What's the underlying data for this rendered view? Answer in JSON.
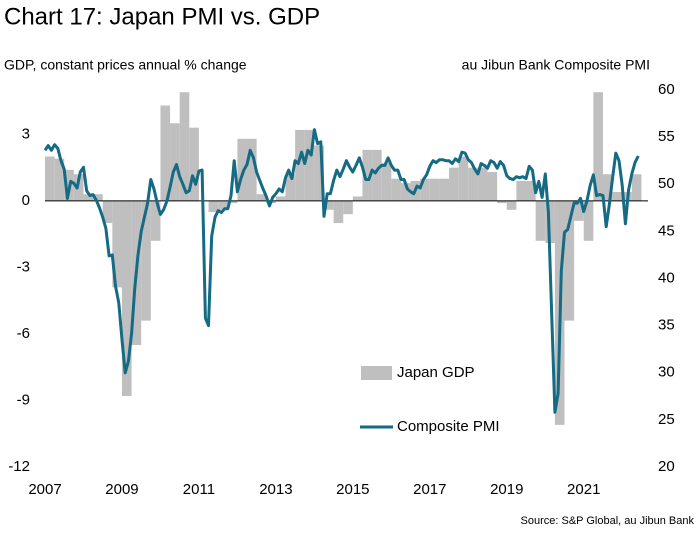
{
  "chart_data": {
    "type": "combo",
    "title": "Chart 17: Japan PMI vs. GDP",
    "y_label": "GDP, constant prices annual % change",
    "y2_label": "au Jibun Bank Composite PMI",
    "source": "Source: S&P Global, au Jibun Bank",
    "xlim": [
      2007,
      2022.67
    ],
    "xticks": [
      2007,
      2009,
      2011,
      2013,
      2015,
      2017,
      2019,
      2021
    ],
    "ylim": [
      -12,
      5
    ],
    "yticks": [
      -12,
      -9,
      -6,
      -3,
      0,
      3
    ],
    "y2lim": [
      20,
      60
    ],
    "y2ticks": [
      20,
      25,
      30,
      35,
      40,
      45,
      50,
      55,
      60
    ],
    "series": [
      {
        "name": "Japan GDP",
        "type": "bar",
        "color": "#bfbfbf",
        "x": [
          2007,
          2007.25,
          2007.5,
          2007.75,
          2008,
          2008.25,
          2008.5,
          2008.75,
          2009,
          2009.25,
          2009.5,
          2009.75,
          2010,
          2010.25,
          2010.5,
          2010.75,
          2011,
          2011.25,
          2011.5,
          2011.75,
          2012,
          2012.25,
          2012.5,
          2012.75,
          2013,
          2013.25,
          2013.5,
          2013.75,
          2014,
          2014.25,
          2014.5,
          2014.75,
          2015,
          2015.25,
          2015.5,
          2015.75,
          2016,
          2016.25,
          2016.5,
          2016.75,
          2017,
          2017.25,
          2017.5,
          2017.75,
          2018,
          2018.25,
          2018.5,
          2018.75,
          2019,
          2019.25,
          2019.5,
          2019.75,
          2020,
          2020.25,
          2020.5,
          2020.75,
          2021,
          2021.25,
          2021.5,
          2021.75,
          2022,
          2022.25
        ],
        "values": [
          2.0,
          1.9,
          1.4,
          1.2,
          0.3,
          0.3,
          -1.0,
          -3.9,
          -8.8,
          -6.5,
          -5.4,
          -1.8,
          4.3,
          3.5,
          4.9,
          3.3,
          0.0,
          -0.5,
          -0.4,
          -0.1,
          2.8,
          2.8,
          0.3,
          -0.1,
          0.2,
          1.2,
          3.2,
          3.2,
          2.5,
          -0.4,
          -1.0,
          -0.6,
          0.2,
          2.3,
          2.3,
          1.7,
          1.0,
          0.8,
          0.9,
          1.0,
          1.0,
          1.0,
          1.5,
          2.0,
          1.5,
          1.5,
          1.3,
          -0.1,
          -0.4,
          0.9,
          0.9,
          -1.8,
          -1.9,
          -10.1,
          -5.4,
          -0.9,
          -1.8,
          4.9,
          1.2,
          0.4,
          0.4,
          1.2
        ]
      },
      {
        "name": "Composite PMI",
        "type": "line",
        "axis": "y2",
        "color": "#156a84",
        "x": [
          2007,
          2007.083,
          2007.167,
          2007.25,
          2007.333,
          2007.417,
          2007.5,
          2007.583,
          2007.667,
          2007.75,
          2007.833,
          2007.917,
          2008,
          2008.083,
          2008.167,
          2008.25,
          2008.333,
          2008.417,
          2008.5,
          2008.583,
          2008.667,
          2008.75,
          2008.833,
          2008.917,
          2009,
          2009.083,
          2009.167,
          2009.25,
          2009.333,
          2009.417,
          2009.5,
          2009.583,
          2009.667,
          2009.75,
          2009.833,
          2009.917,
          2010,
          2010.083,
          2010.167,
          2010.25,
          2010.333,
          2010.417,
          2010.5,
          2010.583,
          2010.667,
          2010.75,
          2010.833,
          2010.917,
          2011,
          2011.083,
          2011.167,
          2011.25,
          2011.333,
          2011.417,
          2011.5,
          2011.583,
          2011.667,
          2011.75,
          2011.833,
          2011.917,
          2012,
          2012.083,
          2012.167,
          2012.25,
          2012.333,
          2012.417,
          2012.5,
          2012.583,
          2012.667,
          2012.75,
          2012.833,
          2012.917,
          2013,
          2013.083,
          2013.167,
          2013.25,
          2013.333,
          2013.417,
          2013.5,
          2013.583,
          2013.667,
          2013.75,
          2013.833,
          2013.917,
          2014,
          2014.083,
          2014.167,
          2014.25,
          2014.333,
          2014.417,
          2014.5,
          2014.583,
          2014.667,
          2014.75,
          2014.833,
          2014.917,
          2015,
          2015.083,
          2015.167,
          2015.25,
          2015.333,
          2015.417,
          2015.5,
          2015.583,
          2015.667,
          2015.75,
          2015.833,
          2015.917,
          2016,
          2016.083,
          2016.167,
          2016.25,
          2016.333,
          2016.417,
          2016.5,
          2016.583,
          2016.667,
          2016.75,
          2016.833,
          2016.917,
          2017,
          2017.083,
          2017.167,
          2017.25,
          2017.333,
          2017.417,
          2017.5,
          2017.583,
          2017.667,
          2017.75,
          2017.833,
          2017.917,
          2018,
          2018.083,
          2018.167,
          2018.25,
          2018.333,
          2018.417,
          2018.5,
          2018.583,
          2018.667,
          2018.75,
          2018.833,
          2018.917,
          2019,
          2019.083,
          2019.167,
          2019.25,
          2019.333,
          2019.417,
          2019.5,
          2019.583,
          2019.667,
          2019.75,
          2019.833,
          2019.917,
          2020,
          2020.083,
          2020.167,
          2020.25,
          2020.333,
          2020.417,
          2020.5,
          2020.583,
          2020.667,
          2020.75,
          2020.833,
          2020.917,
          2021,
          2021.083,
          2021.167,
          2021.25,
          2021.333,
          2021.417,
          2021.5,
          2021.583,
          2021.667,
          2021.75,
          2021.833,
          2021.917,
          2022,
          2022.083,
          2022.167,
          2022.25,
          2022.333,
          2022.417
        ],
        "values": [
          53.6,
          54.1,
          53.6,
          54.2,
          53.8,
          52.5,
          51.6,
          48.5,
          50.3,
          50.1,
          49.6,
          51.3,
          51.8,
          49.3,
          48.8,
          48.9,
          48.3,
          47.5,
          46.5,
          45.3,
          42.4,
          42.5,
          39.2,
          37.4,
          33.5,
          30.0,
          31.2,
          34.2,
          39.0,
          42.5,
          45.0,
          46.5,
          48.0,
          50.5,
          49.5,
          48.0,
          46.8,
          47.3,
          48.2,
          49.7,
          51.3,
          52.1,
          50.8,
          50.0,
          49.1,
          49.3,
          50.9,
          50.0,
          51.4,
          51.5,
          35.8,
          35.0,
          44.5,
          46.5,
          47.2,
          47.0,
          47.4,
          47.4,
          48.8,
          52.5,
          49.2,
          50.5,
          51.5,
          52.1,
          53.6,
          52.8,
          51.3,
          50.4,
          49.5,
          48.7,
          47.7,
          48.6,
          49.0,
          49.5,
          49.2,
          50.7,
          51.5,
          50.6,
          52.5,
          52.2,
          53.4,
          52.2,
          53.6,
          53.1,
          55.8,
          54.3,
          54.5,
          46.6,
          49.0,
          49.0,
          50.4,
          51.5,
          50.8,
          51.6,
          52.5,
          51.8,
          51.3,
          52.0,
          52.8,
          51.8,
          50.5,
          50.5,
          51.5,
          51.2,
          51.7,
          52.0,
          52.0,
          52.8,
          52.0,
          51.5,
          51.5,
          50.5,
          50.5,
          49.5,
          49.2,
          49.0,
          49.8,
          49.6,
          50.5,
          51.0,
          51.9,
          52.5,
          52.3,
          52.6,
          52.6,
          52.5,
          52.5,
          52.2,
          52.7,
          52.4,
          53.4,
          53.3,
          52.6,
          52.3,
          51.6,
          51.1,
          52.2,
          52.0,
          51.7,
          52.5,
          52.3,
          51.7,
          52.4,
          52.0,
          50.9,
          50.6,
          50.5,
          50.8,
          50.7,
          50.8,
          50.6,
          51.9,
          51.5,
          49.1,
          50.3,
          48.6,
          51.1,
          47.0,
          36.2,
          25.8,
          27.8,
          40.8,
          44.9,
          45.2,
          46.6,
          48.0,
          48.0,
          48.5,
          47.1,
          48.2,
          49.9,
          51.0,
          48.8,
          48.9,
          48.8,
          45.5,
          47.9,
          50.7,
          53.3,
          52.5,
          49.9,
          45.8,
          49.4,
          51.1,
          52.3,
          53.0
        ]
      }
    ]
  }
}
